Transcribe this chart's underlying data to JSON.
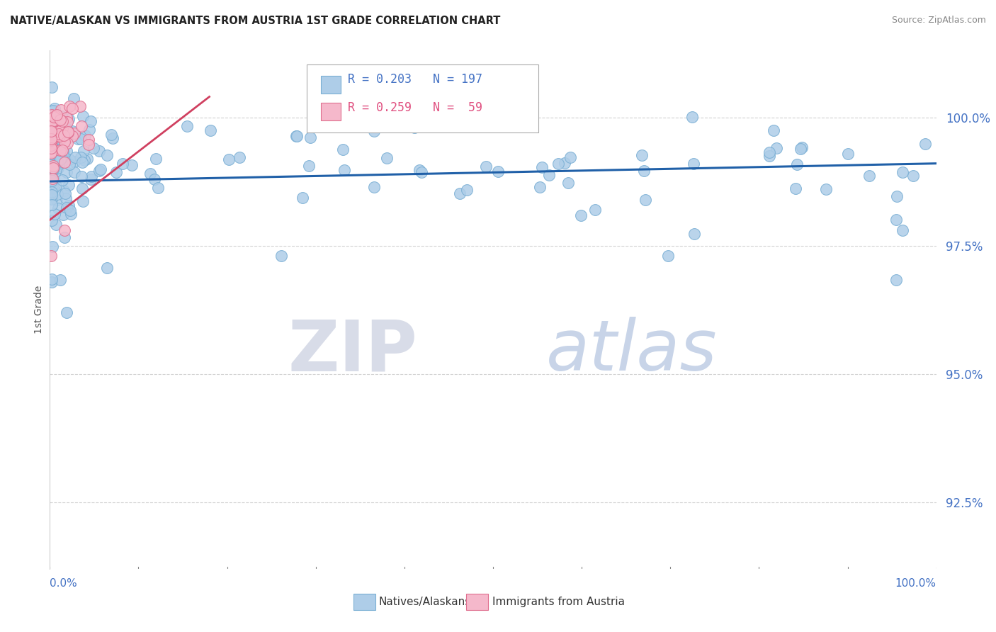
{
  "title": "NATIVE/ALASKAN VS IMMIGRANTS FROM AUSTRIA 1ST GRADE CORRELATION CHART",
  "source": "Source: ZipAtlas.com",
  "ylabel": "1st Grade",
  "yticks": [
    92.5,
    95.0,
    97.5,
    100.0
  ],
  "ytick_labels": [
    "92.5%",
    "95.0%",
    "97.5%",
    "100.0%"
  ],
  "xmin": 0.0,
  "xmax": 100.0,
  "ymin": 91.2,
  "ymax": 101.3,
  "legend_R1": "R = 0.203",
  "legend_N1": "N = 197",
  "legend_R2": "R = 0.259",
  "legend_N2": "N =  59",
  "legend_label1": "Natives/Alaskans",
  "legend_label2": "Immigrants from Austria",
  "blue_color": "#aecde8",
  "blue_edge_color": "#7aafd4",
  "pink_color": "#f5b8cb",
  "pink_edge_color": "#e07090",
  "blue_line_color": "#2060a8",
  "pink_line_color": "#d04060",
  "tick_color": "#4472c4",
  "grid_color": "#cccccc",
  "title_color": "#222222",
  "source_color": "#888888",
  "watermark_ZIP_color": "#d8dce8",
  "watermark_atlas_color": "#c8d4e8"
}
